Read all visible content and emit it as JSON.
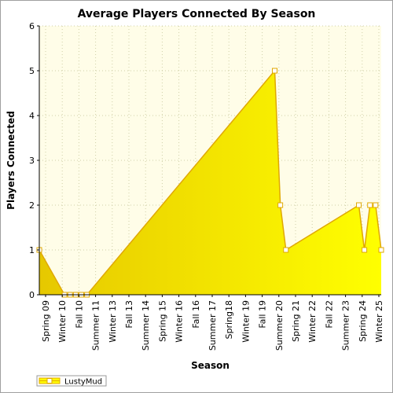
{
  "chart_data": {
    "type": "area",
    "title": "Average Players Connected By Season",
    "xlabel": "Season",
    "ylabel": "Players Connected",
    "ylim": [
      0,
      6
    ],
    "yticks": [
      0,
      1,
      2,
      3,
      4,
      5,
      6
    ],
    "xtick_labels": [
      "Spring 09",
      "Winter 10",
      "Fall 10",
      "Summer 11",
      "Winter 13",
      "Fall 13",
      "Summer 14",
      "Spring 15",
      "Winter 16",
      "Fall 16",
      "Summer 17",
      "Spring18",
      "Winter 19",
      "Fall 19",
      "Summer 20",
      "Spring 21",
      "Winter 22",
      "Fall 22",
      "Summer 23",
      "Spring 24",
      "Winter 25"
    ],
    "x_range": [
      0,
      61
    ],
    "grid": true,
    "legend": "bottom-left",
    "colors": {
      "fill": "#ffff00",
      "fill_dark": "#e6c800",
      "line": "#e0a800",
      "plot_bg": "#fffde8",
      "grid": "#cfcfa8"
    },
    "series": [
      {
        "name": "LustyMud",
        "points": [
          {
            "x": 0,
            "y": 1
          },
          {
            "x": 4.5,
            "y": 0
          },
          {
            "x": 5.5,
            "y": 0
          },
          {
            "x": 6.5,
            "y": 0
          },
          {
            "x": 7.5,
            "y": 0
          },
          {
            "x": 8.5,
            "y": 0
          },
          {
            "x": 42,
            "y": 5
          },
          {
            "x": 43,
            "y": 2
          },
          {
            "x": 44,
            "y": 1
          },
          {
            "x": 57,
            "y": 2
          },
          {
            "x": 58,
            "y": 1
          },
          {
            "x": 59,
            "y": 2
          },
          {
            "x": 60,
            "y": 2
          },
          {
            "x": 61,
            "y": 1
          }
        ]
      }
    ]
  }
}
